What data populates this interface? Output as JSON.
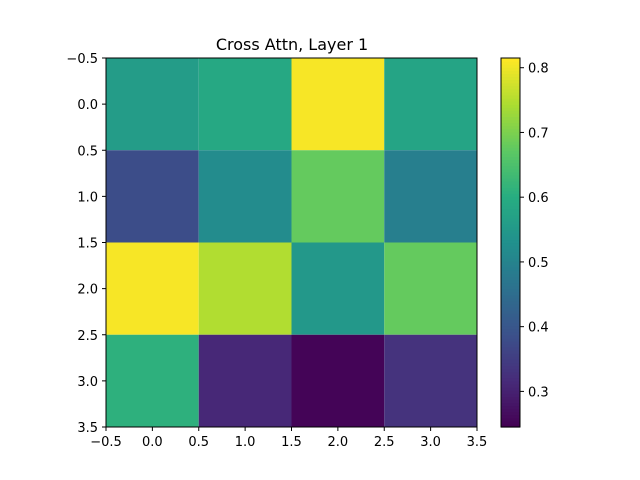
{
  "chart_data": {
    "type": "heatmap",
    "title": "Cross Attn, Layer 1",
    "xlabel": "",
    "ylabel": "",
    "rows": 4,
    "cols": 4,
    "values": [
      [
        0.56,
        0.59,
        0.81,
        0.58
      ],
      [
        0.38,
        0.52,
        0.68,
        0.49
      ],
      [
        0.81,
        0.75,
        0.55,
        0.68
      ],
      [
        0.61,
        0.31,
        0.25,
        0.33
      ]
    ],
    "vmin": 0.245,
    "vmax": 0.815,
    "xlim": [
      -0.5,
      3.5
    ],
    "ylim": [
      3.5,
      -0.5
    ],
    "x_ticks": [
      "−0.5",
      "0.0",
      "0.5",
      "1.0",
      "1.5",
      "2.0",
      "2.5",
      "3.0",
      "3.5"
    ],
    "y_ticks": [
      "−0.5",
      "0.0",
      "0.5",
      "1.0",
      "1.5",
      "2.0",
      "2.5",
      "3.0",
      "3.5"
    ],
    "colorbar_ticks": [
      "0.3",
      "0.4",
      "0.5",
      "0.6",
      "0.7",
      "0.8"
    ],
    "colormap": "viridis",
    "grid": false
  }
}
